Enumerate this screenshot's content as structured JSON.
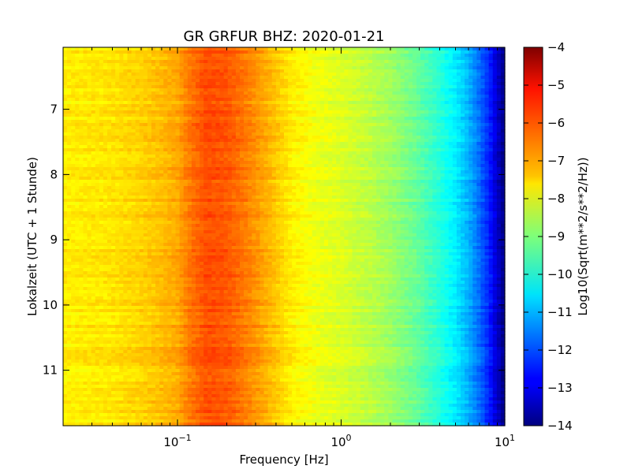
{
  "chart_data": {
    "type": "heatmap",
    "title": "GR GRFUR BHZ: 2020-01-21",
    "xlabel": "Frequency [Hz]",
    "ylabel": "Lokalzeit (UTC + 1 Stunde)",
    "xscale": "log",
    "xlim": [
      0.02,
      10
    ],
    "ylim": [
      11.85,
      6.05
    ],
    "yaxis_inverted": true,
    "x_ticks": [
      {
        "value": 0.1,
        "base": "10",
        "exp": "−1"
      },
      {
        "value": 1,
        "base": "10",
        "exp": "0"
      },
      {
        "value": 10,
        "base": "10",
        "exp": "1"
      }
    ],
    "y_ticks": [
      {
        "value": 7,
        "label": "7"
      },
      {
        "value": 8,
        "label": "8"
      },
      {
        "value": 9,
        "label": "9"
      },
      {
        "value": 10,
        "label": "10"
      },
      {
        "value": 11,
        "label": "11"
      }
    ],
    "colormap": "jet",
    "colorbar": {
      "label": "Log10(Sqrt(m**2/s**2/Hz))",
      "range": [
        -14,
        -4
      ],
      "ticks": [
        {
          "value": -4,
          "label": "−4"
        },
        {
          "value": -5,
          "label": "−5"
        },
        {
          "value": -6,
          "label": "−6"
        },
        {
          "value": -7,
          "label": "−7"
        },
        {
          "value": -8,
          "label": "−8"
        },
        {
          "value": -9,
          "label": "−9"
        },
        {
          "value": -10,
          "label": "−10"
        },
        {
          "value": -11,
          "label": "−11"
        },
        {
          "value": -12,
          "label": "−12"
        },
        {
          "value": -13,
          "label": "−13"
        },
        {
          "value": -14,
          "label": "−14"
        }
      ]
    },
    "spectrum_profile": {
      "frequency_hz": [
        0.02,
        0.04,
        0.06,
        0.08,
        0.1,
        0.12,
        0.15,
        0.2,
        0.25,
        0.3,
        0.4,
        0.5,
        0.7,
        1.0,
        1.5,
        2,
        3,
        4,
        5,
        6,
        7,
        8,
        9,
        10
      ],
      "value": [
        -7.6,
        -7.5,
        -7.3,
        -7.1,
        -6.9,
        -6.4,
        -6.0,
        -6.1,
        -6.4,
        -6.7,
        -7.2,
        -7.6,
        -7.9,
        -8.1,
        -8.4,
        -8.7,
        -9.3,
        -9.9,
        -10.4,
        -11.0,
        -11.7,
        -12.4,
        -13.3,
        -14.0
      ]
    }
  }
}
